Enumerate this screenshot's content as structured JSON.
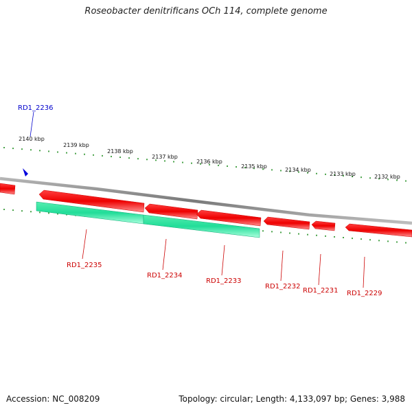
{
  "title": "Roseobacter denitrificans OCh 114, complete genome",
  "footer": {
    "accession": "Accession: NC_008209",
    "summary": "Topology: circular; Length: 4,133,097 bp; Genes: 3,988"
  },
  "colors": {
    "backbone": "#8c8c8c",
    "gene_red": "#ee0000",
    "gene_red_light": "#ff8080",
    "gene_green": "#22dd99",
    "gene_green_light": "#99ffd6",
    "tick": "#1a8a1a",
    "label_red": "#cc0000",
    "label_blue": "#0000cc",
    "marker": "#0000dd"
  },
  "scale": {
    "ticks_kbp": [
      "2140 kbp",
      "2139 kbp",
      "2138 kbp",
      "2137 kbp",
      "2136 kbp",
      "2135 kbp",
      "2134 kbp",
      "2133 kbp",
      "2132 kbp"
    ]
  },
  "highlight": {
    "label": "RD1_2236",
    "marker": "triangle-marker"
  },
  "genes": [
    {
      "label": "RD1_2235",
      "strand": "reverse"
    },
    {
      "label": "RD1_2234",
      "strand": "reverse"
    },
    {
      "label": "RD1_2233",
      "strand": "reverse"
    },
    {
      "label": "RD1_2232",
      "strand": "reverse"
    },
    {
      "label": "RD1_2231",
      "strand": "reverse"
    },
    {
      "label": "RD1_2229",
      "strand": "reverse"
    }
  ]
}
